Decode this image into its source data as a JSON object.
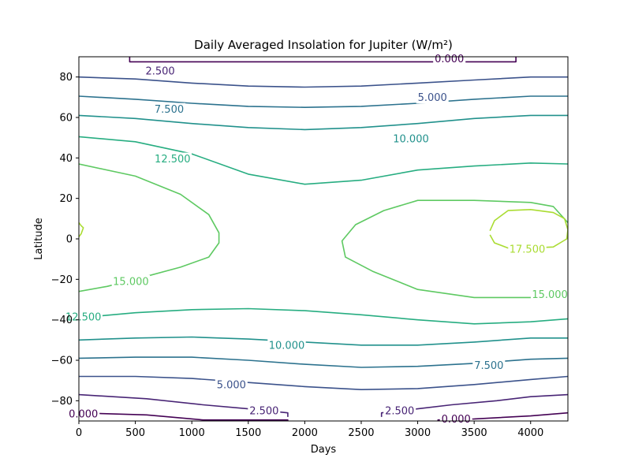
{
  "chart_data": {
    "type": "contour",
    "title": "Daily Averaged Insolation for Jupiter (W/m²)",
    "xlabel": "Days",
    "ylabel": "Latitude",
    "xlim": [
      0,
      4330
    ],
    "ylim": [
      -90,
      90
    ],
    "xticks": [
      0,
      500,
      1000,
      1500,
      2000,
      2500,
      3000,
      3500,
      4000
    ],
    "yticks": [
      -80,
      -60,
      -40,
      -20,
      0,
      20,
      40,
      60,
      80
    ],
    "levels": [
      {
        "value": 0.0,
        "label": "0.000",
        "color": "#440154"
      },
      {
        "value": 2.5,
        "label": "2.500",
        "color": "#482475"
      },
      {
        "value": 5.0,
        "label": "5.000",
        "color": "#3b528b"
      },
      {
        "value": 7.5,
        "label": "7.500",
        "color": "#2c728e"
      },
      {
        "value": 10.0,
        "label": "10.000",
        "color": "#21918c"
      },
      {
        "value": 12.5,
        "label": "12.500",
        "color": "#27ad81"
      },
      {
        "value": 15.0,
        "label": "15.000",
        "color": "#5ec962"
      },
      {
        "value": 17.5,
        "label": "17.500",
        "color": "#aadc32"
      }
    ],
    "contours": [
      {
        "level": 0.0,
        "points": [
          [
            450,
            90
          ],
          [
            450,
            87.5
          ],
          [
            1000,
            87.5
          ],
          [
            1900,
            87.5
          ],
          [
            2800,
            87.5
          ],
          [
            3870,
            87.5
          ],
          [
            3870,
            90
          ]
        ]
      },
      {
        "level": 0.0,
        "points": [
          [
            0,
            -86
          ],
          [
            600,
            -87
          ],
          [
            1100,
            -89.5
          ],
          [
            1850,
            -89.5
          ],
          [
            1850,
            -90
          ]
        ]
      },
      {
        "level": 0.0,
        "points": [
          [
            3180,
            -90
          ],
          [
            3180,
            -89.5
          ],
          [
            3500,
            -89
          ],
          [
            4000,
            -87.5
          ],
          [
            4330,
            -86
          ]
        ]
      },
      {
        "level": 2.5,
        "points": [
          [
            0,
            -77
          ],
          [
            600,
            -79
          ],
          [
            1100,
            -82
          ],
          [
            1500,
            -84
          ],
          [
            1850,
            -86
          ],
          [
            1850,
            -88
          ]
        ]
      },
      {
        "level": 2.5,
        "points": [
          [
            2680,
            -88
          ],
          [
            2680,
            -86
          ],
          [
            3000,
            -84
          ],
          [
            3300,
            -82
          ],
          [
            3700,
            -80
          ],
          [
            4000,
            -78
          ],
          [
            4330,
            -77
          ]
        ]
      },
      {
        "level": 5.0,
        "points": [
          [
            0,
            80
          ],
          [
            500,
            79
          ],
          [
            1000,
            77
          ],
          [
            1500,
            75.5
          ],
          [
            2000,
            75
          ],
          [
            2500,
            75.5
          ],
          [
            3000,
            77
          ],
          [
            3500,
            78.5
          ],
          [
            4000,
            80
          ],
          [
            4330,
            80
          ]
        ]
      },
      {
        "level": 5.0,
        "points": [
          [
            0,
            -68
          ],
          [
            500,
            -68
          ],
          [
            1000,
            -69
          ],
          [
            1500,
            -71
          ],
          [
            2000,
            -73
          ],
          [
            2500,
            -74.5
          ],
          [
            3000,
            -74
          ],
          [
            3500,
            -72
          ],
          [
            4000,
            -69.5
          ],
          [
            4330,
            -68
          ]
        ]
      },
      {
        "level": 7.5,
        "points": [
          [
            0,
            70.5
          ],
          [
            500,
            69
          ],
          [
            1000,
            67
          ],
          [
            1500,
            65.5
          ],
          [
            2000,
            65
          ],
          [
            2500,
            65.5
          ],
          [
            3000,
            67
          ],
          [
            3500,
            69
          ],
          [
            4000,
            70.5
          ],
          [
            4330,
            70.5
          ]
        ]
      },
      {
        "level": 7.5,
        "points": [
          [
            0,
            -59
          ],
          [
            500,
            -58.5
          ],
          [
            1000,
            -58.5
          ],
          [
            1500,
            -60
          ],
          [
            2000,
            -62
          ],
          [
            2500,
            -63.5
          ],
          [
            3000,
            -63
          ],
          [
            3500,
            -61.5
          ],
          [
            4000,
            -59.5
          ],
          [
            4330,
            -59
          ]
        ]
      },
      {
        "level": 10.0,
        "points": [
          [
            0,
            61
          ],
          [
            500,
            59.5
          ],
          [
            1000,
            57
          ],
          [
            1500,
            55
          ],
          [
            2000,
            54
          ],
          [
            2500,
            55
          ],
          [
            3000,
            57
          ],
          [
            3500,
            59.5
          ],
          [
            4000,
            61
          ],
          [
            4330,
            61
          ]
        ]
      },
      {
        "level": 10.0,
        "points": [
          [
            0,
            -50
          ],
          [
            500,
            -49
          ],
          [
            1000,
            -48.5
          ],
          [
            1500,
            -49.5
          ],
          [
            2000,
            -51
          ],
          [
            2500,
            -52.5
          ],
          [
            3000,
            -52.5
          ],
          [
            3500,
            -51
          ],
          [
            4000,
            -49
          ],
          [
            4330,
            -49
          ]
        ]
      },
      {
        "level": 12.5,
        "points": [
          [
            0,
            50.5
          ],
          [
            500,
            48
          ],
          [
            1000,
            42
          ],
          [
            1500,
            32
          ],
          [
            2000,
            27
          ],
          [
            2500,
            29
          ],
          [
            3000,
            34
          ],
          [
            3500,
            36
          ],
          [
            4000,
            37.5
          ],
          [
            4330,
            37
          ]
        ]
      },
      {
        "level": 12.5,
        "points": [
          [
            0,
            -39
          ],
          [
            500,
            -36.5
          ],
          [
            1000,
            -35
          ],
          [
            1500,
            -34.5
          ],
          [
            2000,
            -35.5
          ],
          [
            2500,
            -37.5
          ],
          [
            3000,
            -40
          ],
          [
            3500,
            -42
          ],
          [
            4000,
            -41
          ],
          [
            4330,
            -39.5
          ]
        ]
      },
      {
        "level": 15.0,
        "points": [
          [
            0,
            37
          ],
          [
            500,
            31
          ],
          [
            900,
            22
          ],
          [
            1150,
            12
          ],
          [
            1240,
            3
          ],
          [
            1240,
            -2
          ],
          [
            1150,
            -9
          ],
          [
            900,
            -14
          ],
          [
            500,
            -20
          ],
          [
            250,
            -23.5
          ],
          [
            0,
            -26
          ]
        ]
      },
      {
        "level": 15.0,
        "points": [
          [
            4330,
            8
          ],
          [
            4200,
            16
          ],
          [
            4000,
            18
          ],
          [
            3500,
            19
          ],
          [
            3000,
            19
          ],
          [
            2700,
            14
          ],
          [
            2450,
            7
          ],
          [
            2330,
            -1
          ],
          [
            2360,
            -9
          ],
          [
            2600,
            -16
          ],
          [
            3000,
            -25
          ],
          [
            3500,
            -29
          ],
          [
            4000,
            -29
          ],
          [
            4330,
            -28
          ]
        ]
      },
      {
        "level": 17.5,
        "points": [
          [
            3640,
            2
          ],
          [
            3680,
            -2
          ],
          [
            3800,
            -4.5
          ],
          [
            4000,
            -4.5
          ],
          [
            4200,
            -4
          ],
          [
            4320,
            0
          ],
          [
            4330,
            4.5
          ],
          [
            4300,
            10
          ],
          [
            4200,
            13
          ],
          [
            4000,
            14.5
          ],
          [
            3800,
            14
          ],
          [
            3680,
            9
          ],
          [
            3640,
            4
          ]
        ]
      },
      {
        "level": 17.5,
        "points": [
          [
            0,
            8
          ],
          [
            20,
            6.5
          ],
          [
            40,
            5.5
          ],
          [
            20,
            2.5
          ],
          [
            0,
            1
          ]
        ]
      }
    ],
    "contour_labels": [
      {
        "text": "0.000",
        "x": 3280,
        "y": 89
      },
      {
        "text": "0.000",
        "x": 40,
        "y": -86.5
      },
      {
        "text": "0.000",
        "x": 3340,
        "y": -89
      },
      {
        "text": "2.500",
        "x": 720,
        "y": 83
      },
      {
        "text": "2.500",
        "x": 1640,
        "y": -85
      },
      {
        "text": "2.500",
        "x": 2840,
        "y": -85
      },
      {
        "text": "5.000",
        "x": 3130,
        "y": 70
      },
      {
        "text": "5.000",
        "x": 1350,
        "y": -72
      },
      {
        "text": "7.500",
        "x": 800,
        "y": 64
      },
      {
        "text": "7.500",
        "x": 3630,
        "y": -62.5
      },
      {
        "text": "10.000",
        "x": 2940,
        "y": 49.5
      },
      {
        "text": "10.000",
        "x": 1840,
        "y": -52.5
      },
      {
        "text": "12.500",
        "x": 830,
        "y": 39.5
      },
      {
        "text": "12.500",
        "x": 40,
        "y": -38.5
      },
      {
        "text": "15.000",
        "x": 460,
        "y": -21
      },
      {
        "text": "15.000",
        "x": 4170,
        "y": -27.5
      },
      {
        "text": "17.500",
        "x": 3970,
        "y": -5
      }
    ]
  }
}
